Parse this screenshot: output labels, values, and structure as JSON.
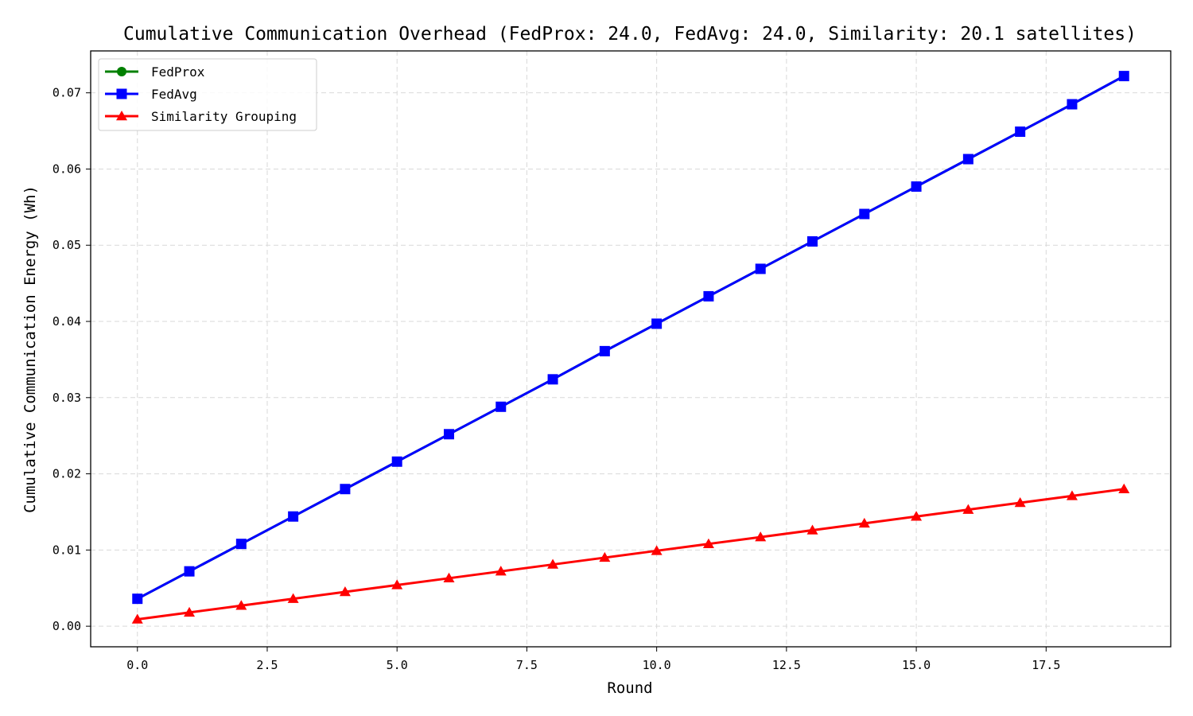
{
  "chart_data": {
    "type": "line",
    "title": "Cumulative Communication Overhead (FedProx: 24.0, FedAvg: 24.0, Similarity: 20.1 satellites)",
    "xlabel": "Round",
    "ylabel": "Cumulative Communication Energy (Wh)",
    "xlim": [
      -0.9,
      19.9
    ],
    "ylim": [
      -0.0027,
      0.0755
    ],
    "xticks": [
      0.0,
      2.5,
      5.0,
      7.5,
      10.0,
      12.5,
      15.0,
      17.5
    ],
    "xtick_labels": [
      "0.0",
      "2.5",
      "5.0",
      "7.5",
      "10.0",
      "12.5",
      "15.0",
      "17.5"
    ],
    "yticks": [
      0.0,
      0.01,
      0.02,
      0.03,
      0.04,
      0.05,
      0.06,
      0.07
    ],
    "ytick_labels": [
      "0.00",
      "0.01",
      "0.02",
      "0.03",
      "0.04",
      "0.05",
      "0.06",
      "0.07"
    ],
    "grid": true,
    "legend_position": "top-left",
    "x": [
      0,
      1,
      2,
      3,
      4,
      5,
      6,
      7,
      8,
      9,
      10,
      11,
      12,
      13,
      14,
      15,
      16,
      17,
      18,
      19
    ],
    "series": [
      {
        "name": "FedProx",
        "color": "#008000",
        "marker": "circle",
        "values": [
          0.0036,
          0.0072,
          0.0108,
          0.0144,
          0.018,
          0.0216,
          0.0252,
          0.0288,
          0.0324,
          0.0361,
          0.0397,
          0.0433,
          0.0469,
          0.0505,
          0.0541,
          0.0577,
          0.0613,
          0.0649,
          0.0685,
          0.0722
        ]
      },
      {
        "name": "FedAvg",
        "color": "#0000ff",
        "marker": "square",
        "values": [
          0.0036,
          0.0072,
          0.0108,
          0.0144,
          0.018,
          0.0216,
          0.0252,
          0.0288,
          0.0324,
          0.0361,
          0.0397,
          0.0433,
          0.0469,
          0.0505,
          0.0541,
          0.0577,
          0.0613,
          0.0649,
          0.0685,
          0.0722
        ]
      },
      {
        "name": "Similarity Grouping",
        "color": "#ff0000",
        "marker": "triangle",
        "values": [
          0.0009,
          0.0018,
          0.0027,
          0.0036,
          0.0045,
          0.0054,
          0.0063,
          0.0072,
          0.0081,
          0.009,
          0.0099,
          0.0108,
          0.0117,
          0.0126,
          0.0135,
          0.0144,
          0.0153,
          0.0162,
          0.0171,
          0.018
        ]
      }
    ]
  }
}
